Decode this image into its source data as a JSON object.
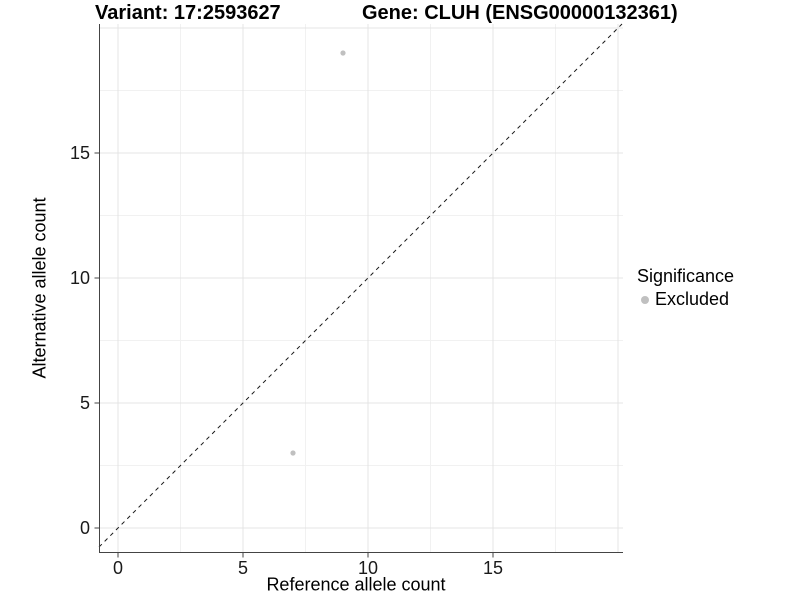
{
  "chart_data": {
    "type": "scatter",
    "titles": {
      "left": "Variant: 17:2593627",
      "right": "Gene: CLUH (ENSG00000132361)"
    },
    "xlabel": "Reference allele count",
    "ylabel": "Alternative allele count",
    "xlim": [
      -0.76,
      20.2
    ],
    "ylim": [
      -1.0,
      20.16
    ],
    "x_ticks": [
      0,
      5,
      10,
      15
    ],
    "y_ticks": [
      0,
      5,
      10,
      15
    ],
    "grid_major": [
      0,
      5,
      10,
      15,
      20
    ],
    "grid_minor": [
      2.5,
      7.5,
      12.5,
      17.5
    ],
    "grid": "major+minor",
    "identity_line": {
      "equation": "y = x",
      "style": "dashed",
      "color": "#1a1a1a"
    },
    "series": [
      {
        "name": "Excluded",
        "color": "#c0c0c0",
        "points": [
          {
            "x": 7,
            "y": 3
          },
          {
            "x": 9,
            "y": 19
          }
        ]
      }
    ],
    "legend": {
      "title": "Significance",
      "position": "right",
      "items": [
        {
          "label": "Excluded",
          "color": "#c0c0c0"
        }
      ]
    },
    "colors": {
      "axis_line": "#444444",
      "tick_mark": "#444444",
      "tick_label": "#1a1a1a",
      "grid_major": "#e4e4e4",
      "grid_minor": "#f1f1f1",
      "background": "#ffffff"
    }
  }
}
